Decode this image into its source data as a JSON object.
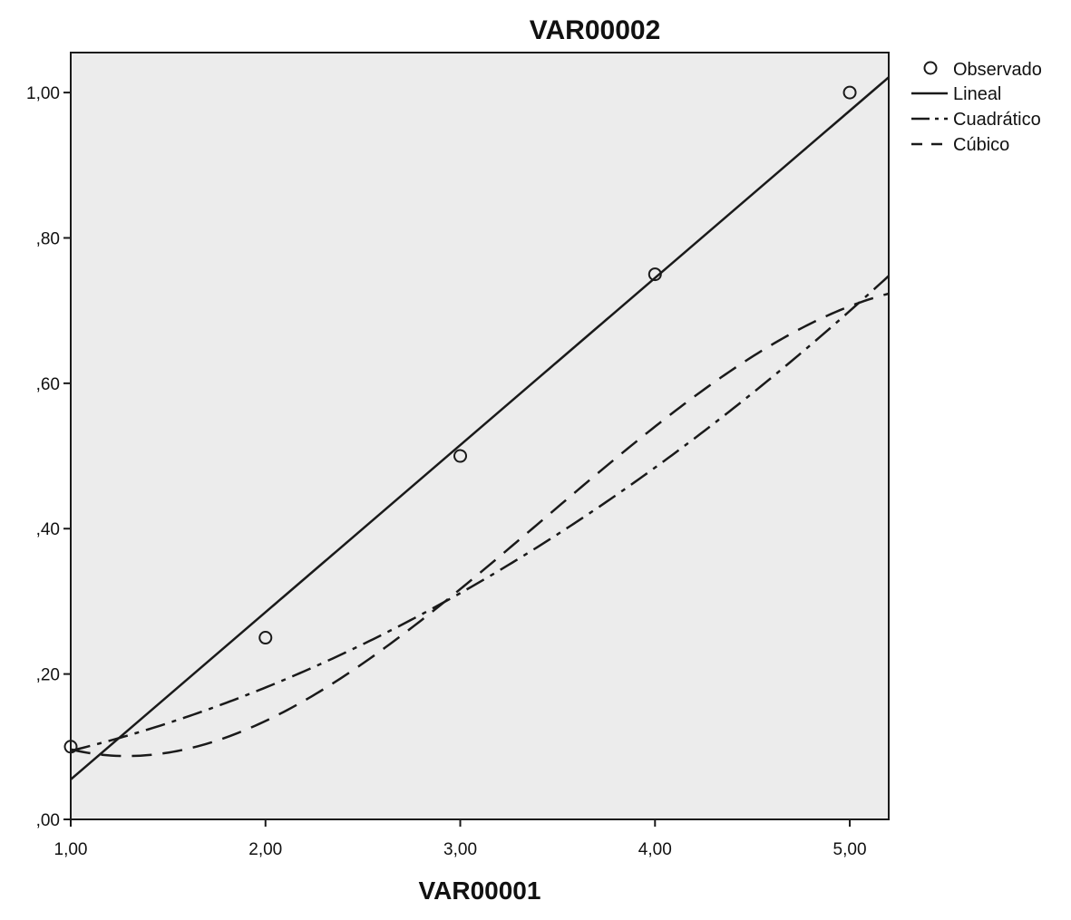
{
  "chart_data": {
    "type": "scatter",
    "title": "VAR00002",
    "xlabel": "VAR00001",
    "ylabel": "",
    "xlim": [
      1.0,
      5.2
    ],
    "ylim": [
      0.0,
      1.055
    ],
    "x_ticks": [
      "1,00",
      "2,00",
      "3,00",
      "4,00",
      "5,00"
    ],
    "x_tick_values": [
      1,
      2,
      3,
      4,
      5
    ],
    "y_ticks": [
      ",00",
      ",20",
      ",40",
      ",60",
      ",80",
      "1,00"
    ],
    "y_tick_values": [
      0,
      0.2,
      0.4,
      0.6,
      0.8,
      1.0
    ],
    "grid": false,
    "legend_position": "top-right-outside",
    "observed": {
      "name": "Observado",
      "x": [
        1,
        2,
        3,
        4,
        5
      ],
      "y": [
        0.1,
        0.25,
        0.5,
        0.75,
        1.0
      ]
    },
    "fits": [
      {
        "name": "Lineal",
        "style": "solid",
        "coefficients": [
          -0.175,
          0.23
        ]
      },
      {
        "name": "Cuadrático",
        "style": "dashdot",
        "coefficients": [
          0.05,
          0.0229,
          0.0214
        ]
      },
      {
        "name": "Cúbico",
        "style": "dashed",
        "coefficients": [
          0.3,
          -0.3583,
          0.1714,
          -0.0167
        ]
      }
    ],
    "colors": {
      "plot_background": "#ececec",
      "line": "#1a1a1a",
      "frame": "#1a1a1a"
    }
  }
}
